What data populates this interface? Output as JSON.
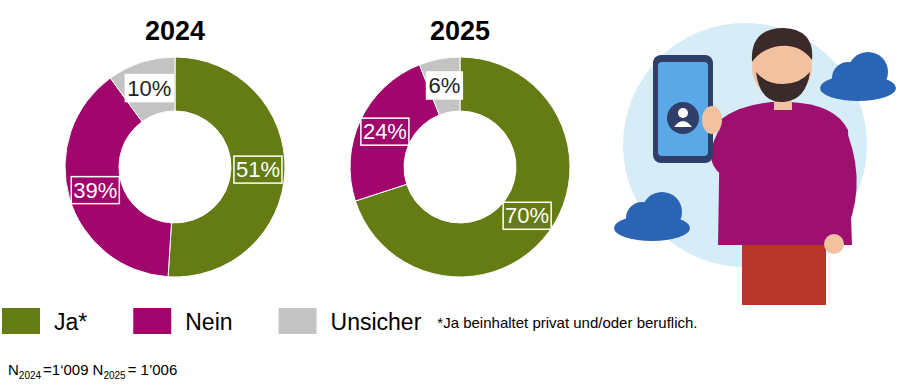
{
  "chart_data": [
    {
      "type": "donut",
      "title": "2024",
      "categories": [
        "Ja*",
        "Nein",
        "Unsicher"
      ],
      "values": [
        51,
        39,
        10
      ],
      "value_labels": [
        "51%",
        "39%",
        "10%"
      ],
      "colors": [
        "#657b13",
        "#a0066c",
        "#c3c3c3"
      ],
      "data_labels": true,
      "legend": "bottom-left"
    },
    {
      "type": "donut",
      "title": "2025",
      "categories": [
        "Ja*",
        "Nein",
        "Unsicher"
      ],
      "values": [
        70,
        24,
        6
      ],
      "value_labels": [
        "70%",
        "24%",
        "6%"
      ],
      "colors": [
        "#657b13",
        "#a0066c",
        "#c3c3c3"
      ],
      "data_labels": true
    }
  ],
  "footnote": "*Ja beinhaltet privat und/oder beruflich.",
  "sample_sizes": [
    {
      "symbol": "N",
      "subscript": "2024",
      "label": "=1‘009"
    },
    {
      "symbol": "N",
      "subscript": "2025",
      "label": "= 1’006"
    }
  ]
}
